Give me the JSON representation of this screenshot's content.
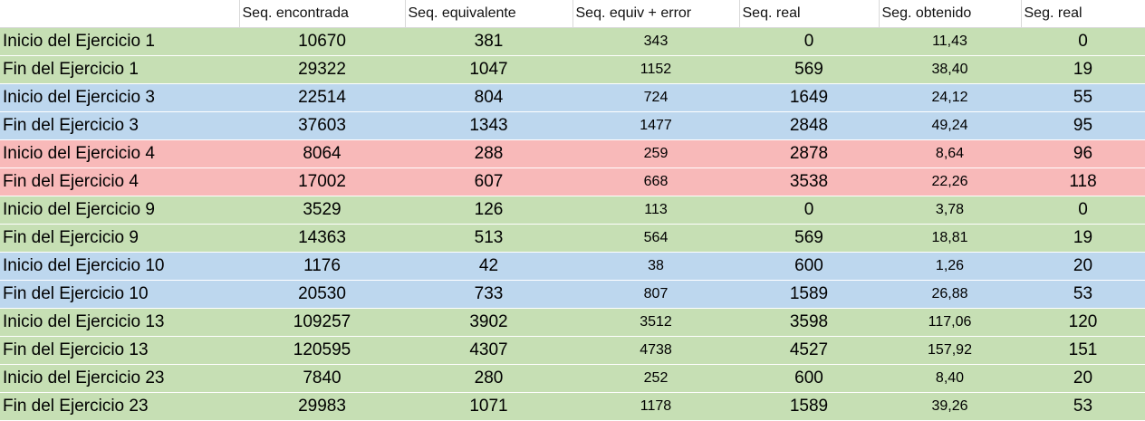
{
  "headers": [
    "",
    "Seq. encontrada",
    "Seq. equivalente",
    "Seq. equiv + error",
    "Seq. real",
    "Seg. obtenido",
    "Seg. real"
  ],
  "colors": {
    "green": "#c6dfb4",
    "blue": "#bdd7ee",
    "red": "#f8b9b9"
  },
  "rows": [
    {
      "band": "green",
      "label": "Inicio del Ejercicio 1",
      "encontrada": "10670",
      "equivalente": "381",
      "equiv_error": "343",
      "seq_real": "0",
      "seg_obtenido": "11,43",
      "seg_real": "0"
    },
    {
      "band": "green",
      "label": "Fin del Ejercicio 1",
      "encontrada": "29322",
      "equivalente": "1047",
      "equiv_error": "1152",
      "seq_real": "569",
      "seg_obtenido": "38,40",
      "seg_real": "19"
    },
    {
      "band": "blue",
      "label": "Inicio del Ejercicio 3",
      "encontrada": "22514",
      "equivalente": "804",
      "equiv_error": "724",
      "seq_real": "1649",
      "seg_obtenido": "24,12",
      "seg_real": "55"
    },
    {
      "band": "blue",
      "label": "Fin del Ejercicio 3",
      "encontrada": "37603",
      "equivalente": "1343",
      "equiv_error": "1477",
      "seq_real": "2848",
      "seg_obtenido": "49,24",
      "seg_real": "95"
    },
    {
      "band": "red",
      "label": "Inicio del Ejercicio 4",
      "encontrada": "8064",
      "equivalente": "288",
      "equiv_error": "259",
      "seq_real": "2878",
      "seg_obtenido": "8,64",
      "seg_real": "96"
    },
    {
      "band": "red",
      "label": "Fin del Ejercicio 4",
      "encontrada": "17002",
      "equivalente": "607",
      "equiv_error": "668",
      "seq_real": "3538",
      "seg_obtenido": "22,26",
      "seg_real": "118"
    },
    {
      "band": "green",
      "label": "Inicio del Ejercicio 9",
      "encontrada": "3529",
      "equivalente": "126",
      "equiv_error": "113",
      "seq_real": "0",
      "seg_obtenido": "3,78",
      "seg_real": "0"
    },
    {
      "band": "green",
      "label": "Fin del Ejercicio 9",
      "encontrada": "14363",
      "equivalente": "513",
      "equiv_error": "564",
      "seq_real": "569",
      "seg_obtenido": "18,81",
      "seg_real": "19"
    },
    {
      "band": "blue",
      "label": "Inicio del Ejercicio 10",
      "encontrada": "1176",
      "equivalente": "42",
      "equiv_error": "38",
      "seq_real": "600",
      "seg_obtenido": "1,26",
      "seg_real": "20"
    },
    {
      "band": "blue",
      "label": "Fin del Ejercicio 10",
      "encontrada": "20530",
      "equivalente": "733",
      "equiv_error": "807",
      "seq_real": "1589",
      "seg_obtenido": "26,88",
      "seg_real": "53"
    },
    {
      "band": "green",
      "label": "Inicio del Ejercicio 13",
      "encontrada": "109257",
      "equivalente": "3902",
      "equiv_error": "3512",
      "seq_real": "3598",
      "seg_obtenido": "117,06",
      "seg_real": "120"
    },
    {
      "band": "green",
      "label": "Fin del Ejercicio 13",
      "encontrada": "120595",
      "equivalente": "4307",
      "equiv_error": "4738",
      "seq_real": "4527",
      "seg_obtenido": "157,92",
      "seg_real": "151"
    },
    {
      "band": "green",
      "label": "Inicio del Ejercicio 23",
      "encontrada": "7840",
      "equivalente": "280",
      "equiv_error": "252",
      "seq_real": "600",
      "seg_obtenido": "8,40",
      "seg_real": "20"
    },
    {
      "band": "green",
      "label": "Fin del Ejercicio 23",
      "encontrada": "29983",
      "equivalente": "1071",
      "equiv_error": "1178",
      "seq_real": "1589",
      "seg_obtenido": "39,26",
      "seg_real": "53"
    }
  ]
}
